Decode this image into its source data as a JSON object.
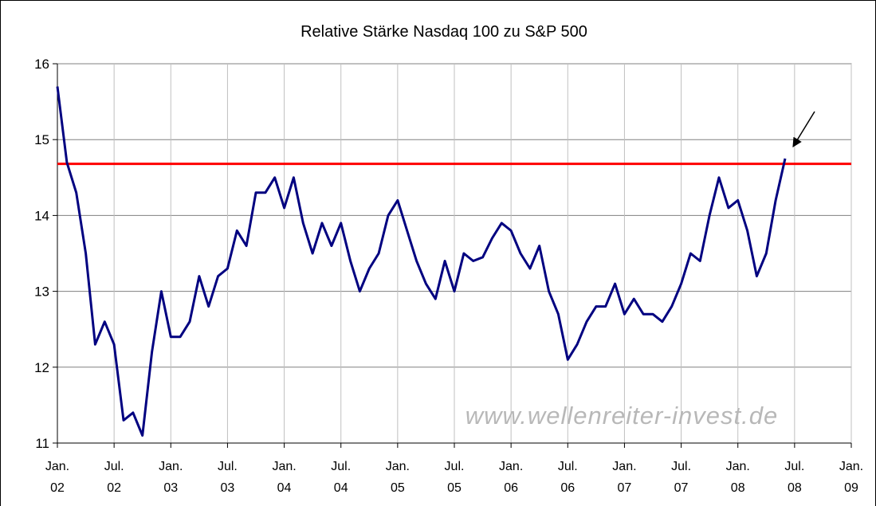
{
  "chart_data": {
    "type": "line",
    "title": "Relative Stärke Nasdaq 100 zu S&P 500",
    "watermark": "www.wellenreiter-invest.de",
    "x": [
      "2002-01",
      "2002-02",
      "2002-03",
      "2002-04",
      "2002-05",
      "2002-06",
      "2002-07",
      "2002-08",
      "2002-09",
      "2002-10",
      "2002-11",
      "2002-12",
      "2003-01",
      "2003-02",
      "2003-03",
      "2003-04",
      "2003-05",
      "2003-06",
      "2003-07",
      "2003-08",
      "2003-09",
      "2003-10",
      "2003-11",
      "2003-12",
      "2004-01",
      "2004-02",
      "2004-03",
      "2004-04",
      "2004-05",
      "2004-06",
      "2004-07",
      "2004-08",
      "2004-09",
      "2004-10",
      "2004-11",
      "2004-12",
      "2005-01",
      "2005-02",
      "2005-03",
      "2005-04",
      "2005-05",
      "2005-06",
      "2005-07",
      "2005-08",
      "2005-09",
      "2005-10",
      "2005-11",
      "2005-12",
      "2006-01",
      "2006-02",
      "2006-03",
      "2006-04",
      "2006-05",
      "2006-06",
      "2006-07",
      "2006-08",
      "2006-09",
      "2006-10",
      "2006-11",
      "2006-12",
      "2007-01",
      "2007-02",
      "2007-03",
      "2007-04",
      "2007-05",
      "2007-06",
      "2007-07",
      "2007-08",
      "2007-09",
      "2007-10",
      "2007-11",
      "2007-12",
      "2008-01",
      "2008-02",
      "2008-03",
      "2008-04",
      "2008-05",
      "2008-06"
    ],
    "series": [
      {
        "color": "#000080",
        "values": [
          15.7,
          14.7,
          14.3,
          13.5,
          12.3,
          12.6,
          12.3,
          11.3,
          11.4,
          11.1,
          12.2,
          13.0,
          12.4,
          12.4,
          12.6,
          13.2,
          12.8,
          13.2,
          13.3,
          13.8,
          13.6,
          14.3,
          14.3,
          14.5,
          14.1,
          14.5,
          13.9,
          13.5,
          13.9,
          13.6,
          13.9,
          13.4,
          13.0,
          13.3,
          13.5,
          14.0,
          14.2,
          13.8,
          13.4,
          13.1,
          12.9,
          13.4,
          13.0,
          13.5,
          13.4,
          13.45,
          13.7,
          13.9,
          13.8,
          13.5,
          13.3,
          13.6,
          13.0,
          12.7,
          12.1,
          12.3,
          12.6,
          12.8,
          12.8,
          13.1,
          12.7,
          12.9,
          12.7,
          12.7,
          12.6,
          12.8,
          13.1,
          13.5,
          13.4,
          14.0,
          14.5,
          14.1,
          14.2,
          13.8,
          13.2,
          13.5,
          14.2,
          14.75
        ]
      }
    ],
    "reference_line": {
      "value": 14.68,
      "color": "#ff0000"
    },
    "xlim": [
      "2002-01",
      "2009-01"
    ],
    "xticks": [
      {
        "value": "2002-01",
        "label": "Jan. 02"
      },
      {
        "value": "2002-07",
        "label": "Jul. 02"
      },
      {
        "value": "2003-01",
        "label": "Jan. 03"
      },
      {
        "value": "2003-07",
        "label": "Jul. 03"
      },
      {
        "value": "2004-01",
        "label": "Jan. 04"
      },
      {
        "value": "2004-07",
        "label": "Jul. 04"
      },
      {
        "value": "2005-01",
        "label": "Jan. 05"
      },
      {
        "value": "2005-07",
        "label": "Jul. 05"
      },
      {
        "value": "2006-01",
        "label": "Jan. 06"
      },
      {
        "value": "2006-07",
        "label": "Jul. 06"
      },
      {
        "value": "2007-01",
        "label": "Jan. 07"
      },
      {
        "value": "2007-07",
        "label": "Jul. 07"
      },
      {
        "value": "2008-01",
        "label": "Jan. 08"
      },
      {
        "value": "2008-07",
        "label": "Jul. 08"
      },
      {
        "value": "2009-01",
        "label": "Jan. 09"
      }
    ],
    "ylim": [
      11,
      16
    ],
    "yticks": [
      11,
      12,
      13,
      14,
      15,
      16
    ],
    "grid": true
  }
}
